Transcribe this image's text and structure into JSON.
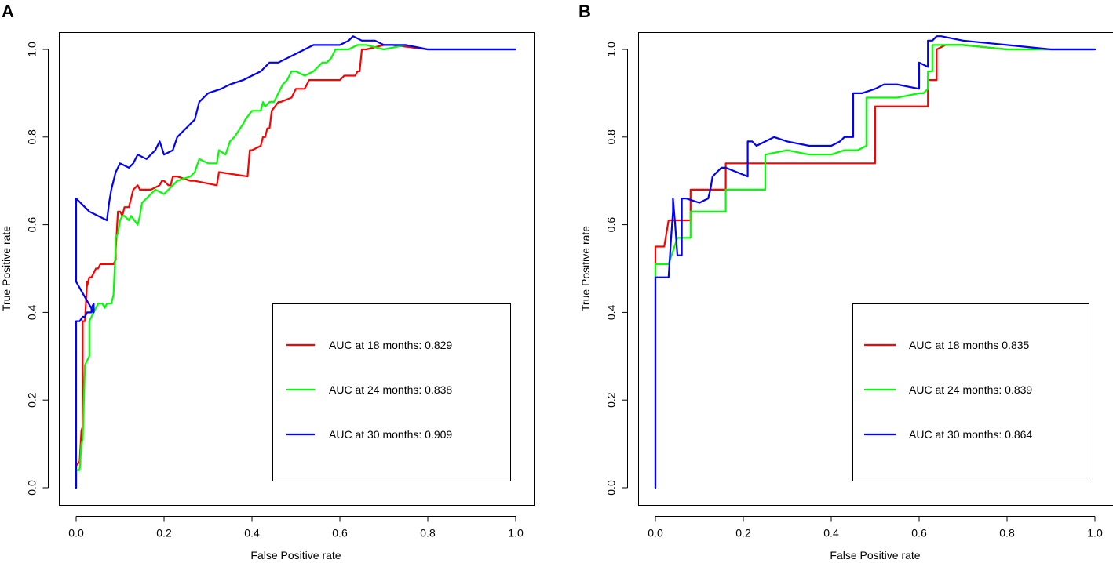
{
  "chart_data": [
    {
      "type": "line",
      "panel": "A",
      "xlabel": "False Positive rate",
      "ylabel": "True Positive rate",
      "xlim": [
        0,
        1
      ],
      "ylim": [
        0,
        1
      ],
      "xticks": [
        "0.0",
        "0.2",
        "0.4",
        "0.6",
        "0.8",
        "1.0"
      ],
      "yticks": [
        "0.0",
        "0.2",
        "0.4",
        "0.6",
        "0.8",
        "1.0"
      ],
      "legend_position": "bottom-right",
      "series": [
        {
          "name": "AUC at 18 months: 0.829",
          "color": "#ff0000",
          "x": [
            0.0,
            0.0,
            0.008,
            0.012,
            0.015,
            0.015,
            0.02,
            0.025,
            0.025,
            0.03,
            0.035,
            0.04,
            0.045,
            0.05,
            0.055,
            0.06,
            0.07,
            0.085,
            0.09,
            0.09,
            0.095,
            0.1,
            0.105,
            0.11,
            0.12,
            0.125,
            0.13,
            0.14,
            0.145,
            0.16,
            0.17,
            0.19,
            0.195,
            0.2,
            0.21,
            0.215,
            0.22,
            0.23,
            0.26,
            0.27,
            0.32,
            0.325,
            0.39,
            0.395,
            0.4,
            0.42,
            0.425,
            0.43,
            0.435,
            0.44,
            0.445,
            0.46,
            0.465,
            0.49,
            0.495,
            0.5,
            0.52,
            0.53,
            0.6,
            0.61,
            0.635,
            0.64,
            0.645,
            0.65,
            0.66,
            0.7,
            0.72,
            0.8,
            0.85,
            0.9,
            0.95,
            1.0
          ],
          "y": [
            0.0,
            0.05,
            0.06,
            0.13,
            0.14,
            0.38,
            0.38,
            0.47,
            0.46,
            0.48,
            0.48,
            0.49,
            0.5,
            0.5,
            0.51,
            0.51,
            0.51,
            0.51,
            0.52,
            0.54,
            0.63,
            0.63,
            0.62,
            0.64,
            0.64,
            0.66,
            0.68,
            0.69,
            0.68,
            0.68,
            0.68,
            0.69,
            0.7,
            0.7,
            0.69,
            0.69,
            0.71,
            0.71,
            0.7,
            0.7,
            0.69,
            0.72,
            0.71,
            0.77,
            0.77,
            0.78,
            0.8,
            0.8,
            0.82,
            0.82,
            0.86,
            0.88,
            0.88,
            0.89,
            0.9,
            0.91,
            0.91,
            0.93,
            0.93,
            0.94,
            0.94,
            0.95,
            0.95,
            1.0,
            1.0,
            1.01,
            1.01,
            1.0,
            1.0,
            1.0,
            1.0,
            1.0
          ]
        },
        {
          "name": "AUC at 24 months: 0.838",
          "color": "#00ff00",
          "x": [
            0.0,
            0.0,
            0.008,
            0.012,
            0.015,
            0.02,
            0.02,
            0.03,
            0.03,
            0.035,
            0.04,
            0.045,
            0.05,
            0.06,
            0.065,
            0.07,
            0.08,
            0.085,
            0.09,
            0.09,
            0.095,
            0.1,
            0.105,
            0.11,
            0.12,
            0.125,
            0.14,
            0.145,
            0.15,
            0.16,
            0.17,
            0.18,
            0.2,
            0.21,
            0.22,
            0.23,
            0.26,
            0.27,
            0.28,
            0.3,
            0.32,
            0.325,
            0.34,
            0.35,
            0.36,
            0.38,
            0.385,
            0.4,
            0.42,
            0.425,
            0.43,
            0.44,
            0.45,
            0.46,
            0.47,
            0.48,
            0.49,
            0.5,
            0.52,
            0.54,
            0.56,
            0.57,
            0.58,
            0.59,
            0.6,
            0.62,
            0.64,
            0.66,
            0.7,
            0.75,
            0.8,
            0.85,
            0.9,
            0.95,
            1.0
          ],
          "y": [
            0.0,
            0.04,
            0.04,
            0.1,
            0.11,
            0.28,
            0.28,
            0.3,
            0.38,
            0.39,
            0.4,
            0.41,
            0.42,
            0.42,
            0.41,
            0.42,
            0.42,
            0.44,
            0.55,
            0.57,
            0.58,
            0.61,
            0.62,
            0.62,
            0.61,
            0.62,
            0.6,
            0.62,
            0.65,
            0.66,
            0.67,
            0.68,
            0.67,
            0.68,
            0.69,
            0.7,
            0.71,
            0.72,
            0.75,
            0.74,
            0.74,
            0.77,
            0.76,
            0.79,
            0.8,
            0.83,
            0.84,
            0.86,
            0.86,
            0.88,
            0.87,
            0.88,
            0.88,
            0.9,
            0.92,
            0.93,
            0.95,
            0.95,
            0.94,
            0.95,
            0.97,
            0.97,
            0.98,
            1.0,
            1.0,
            1.0,
            1.01,
            1.01,
            1.0,
            1.01,
            1.0,
            1.0,
            1.0,
            1.0,
            1.0
          ]
        },
        {
          "name": "AUC at 30 months: 0.909",
          "color": "#0000ff",
          "x": [
            0.0,
            0.0,
            0.0,
            0.008,
            0.015,
            0.02,
            0.025,
            0.03,
            0.035,
            0.035,
            0.04,
            0.04,
            0.0,
            0.0,
            0.03,
            0.05,
            0.07,
            0.075,
            0.08,
            0.085,
            0.09,
            0.1,
            0.12,
            0.13,
            0.14,
            0.16,
            0.18,
            0.19,
            0.2,
            0.22,
            0.23,
            0.25,
            0.27,
            0.28,
            0.3,
            0.33,
            0.35,
            0.38,
            0.4,
            0.42,
            0.44,
            0.46,
            0.48,
            0.5,
            0.52,
            0.54,
            0.56,
            0.58,
            0.6,
            0.62,
            0.63,
            0.65,
            0.68,
            0.7,
            0.75,
            0.8,
            0.85,
            0.9,
            0.95,
            1.0
          ],
          "y": [
            0.0,
            0.38,
            0.38,
            0.38,
            0.39,
            0.39,
            0.4,
            0.4,
            0.4,
            0.41,
            0.42,
            0.4,
            0.47,
            0.66,
            0.63,
            0.62,
            0.61,
            0.65,
            0.68,
            0.7,
            0.72,
            0.74,
            0.73,
            0.74,
            0.76,
            0.75,
            0.77,
            0.79,
            0.76,
            0.77,
            0.8,
            0.82,
            0.84,
            0.88,
            0.9,
            0.91,
            0.92,
            0.93,
            0.94,
            0.95,
            0.97,
            0.97,
            0.98,
            0.99,
            1.0,
            1.01,
            1.01,
            1.01,
            1.01,
            1.02,
            1.03,
            1.02,
            1.02,
            1.01,
            1.01,
            1.0,
            1.0,
            1.0,
            1.0,
            1.0
          ]
        }
      ]
    },
    {
      "type": "line",
      "panel": "B",
      "xlabel": "False Positive rate",
      "ylabel": "True Positive rate",
      "xlim": [
        0,
        1
      ],
      "ylim": [
        0,
        1
      ],
      "xticks": [
        "0.0",
        "0.2",
        "0.4",
        "0.6",
        "0.8",
        "1.0"
      ],
      "yticks": [
        "0.0",
        "0.2",
        "0.4",
        "0.6",
        "0.8",
        "1.0"
      ],
      "legend_position": "bottom-right",
      "series": [
        {
          "name": "AUC at 18 months 0.835",
          "color": "#ff0000",
          "x": [
            0.0,
            0.0,
            0.01,
            0.02,
            0.03,
            0.05,
            0.08,
            0.08,
            0.16,
            0.16,
            0.2,
            0.25,
            0.3,
            0.35,
            0.4,
            0.45,
            0.48,
            0.5,
            0.5,
            0.55,
            0.6,
            0.62,
            0.62,
            0.64,
            0.64,
            0.66,
            0.7,
            0.8,
            0.9,
            1.0
          ],
          "y": [
            0.0,
            0.55,
            0.55,
            0.55,
            0.61,
            0.61,
            0.61,
            0.68,
            0.68,
            0.74,
            0.74,
            0.74,
            0.74,
            0.74,
            0.74,
            0.74,
            0.74,
            0.74,
            0.87,
            0.87,
            0.87,
            0.87,
            0.93,
            0.93,
            1.0,
            1.01,
            1.01,
            1.0,
            1.0,
            1.0
          ]
        },
        {
          "name": "AUC at 24 months: 0.839",
          "color": "#00ff00",
          "x": [
            0.0,
            0.0,
            0.02,
            0.03,
            0.05,
            0.08,
            0.08,
            0.12,
            0.16,
            0.16,
            0.24,
            0.25,
            0.25,
            0.3,
            0.35,
            0.4,
            0.43,
            0.46,
            0.48,
            0.48,
            0.5,
            0.55,
            0.6,
            0.61,
            0.62,
            0.62,
            0.63,
            0.63,
            0.65,
            0.7,
            0.8,
            0.9,
            1.0
          ],
          "y": [
            0.0,
            0.51,
            0.51,
            0.51,
            0.57,
            0.57,
            0.63,
            0.63,
            0.63,
            0.68,
            0.68,
            0.68,
            0.76,
            0.77,
            0.76,
            0.76,
            0.77,
            0.77,
            0.78,
            0.89,
            0.89,
            0.89,
            0.9,
            0.9,
            0.91,
            0.95,
            0.95,
            1.01,
            1.01,
            1.01,
            1.0,
            1.0,
            1.0
          ]
        },
        {
          "name": "AUC at 30 months: 0.864",
          "color": "#0000ff",
          "x": [
            0.0,
            0.0,
            0.01,
            0.03,
            0.035,
            0.04,
            0.04,
            0.045,
            0.05,
            0.06,
            0.06,
            0.07,
            0.1,
            0.12,
            0.125,
            0.13,
            0.14,
            0.15,
            0.16,
            0.21,
            0.21,
            0.22,
            0.23,
            0.25,
            0.27,
            0.3,
            0.35,
            0.38,
            0.4,
            0.42,
            0.43,
            0.45,
            0.45,
            0.47,
            0.5,
            0.52,
            0.55,
            0.6,
            0.6,
            0.62,
            0.62,
            0.63,
            0.64,
            0.65,
            0.7,
            0.8,
            0.9,
            1.0
          ],
          "y": [
            0.0,
            0.48,
            0.48,
            0.48,
            0.56,
            0.63,
            0.66,
            0.6,
            0.53,
            0.53,
            0.66,
            0.66,
            0.65,
            0.66,
            0.68,
            0.71,
            0.72,
            0.73,
            0.73,
            0.71,
            0.79,
            0.79,
            0.78,
            0.79,
            0.8,
            0.79,
            0.78,
            0.78,
            0.78,
            0.79,
            0.8,
            0.8,
            0.9,
            0.9,
            0.91,
            0.92,
            0.92,
            0.91,
            0.97,
            0.96,
            1.02,
            1.02,
            1.03,
            1.03,
            1.02,
            1.01,
            1.0,
            1.0
          ]
        }
      ]
    }
  ]
}
